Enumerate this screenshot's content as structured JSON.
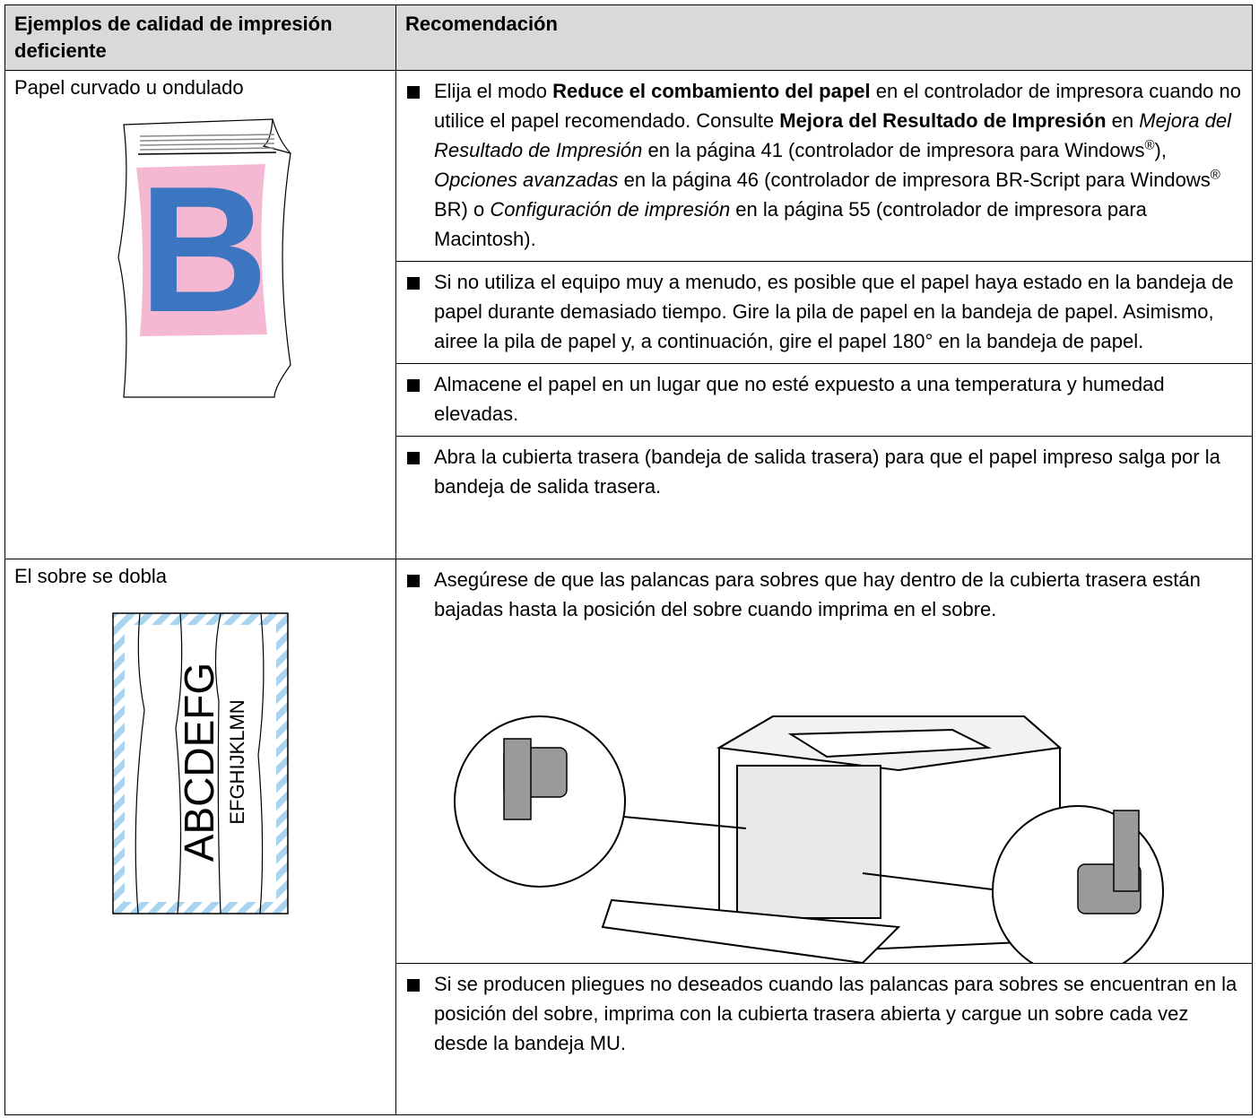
{
  "table": {
    "headers": [
      "Ejemplos de calidad de impresión deficiente",
      "Recomendación"
    ],
    "rows": [
      {
        "example": "Papel curvado u ondulado",
        "image_text": "B",
        "recommendations": [
          [
            {
              "text": "Elija el modo ",
              "style": "normal"
            },
            {
              "text": "Reduce el combamiento del papel",
              "style": "bold"
            },
            {
              "text": " en el controlador de impresora cuando no utilice el papel recomendado. Consulte ",
              "style": "normal"
            },
            {
              "text": "Mejora del Resultado de Impresión",
              "style": "bold"
            },
            {
              "text": " en ",
              "style": "normal"
            },
            {
              "text": "Mejora del Resultado de Impresión",
              "style": "italic"
            },
            {
              "text": " en la página 41 (controlador de impresora para Windows",
              "style": "normal"
            },
            {
              "text": "®",
              "style": "sup"
            },
            {
              "text": "), ",
              "style": "normal"
            },
            {
              "text": "Opciones avanzadas",
              "style": "italic"
            },
            {
              "text": " en la página 46 (controlador de impresora BR-Script para Windows",
              "style": "normal"
            },
            {
              "text": "®",
              "style": "sup"
            },
            {
              "text": " BR) o ",
              "style": "normal"
            },
            {
              "text": "Configuración de impresión",
              "style": "italic"
            },
            {
              "text": " en la página 55 (controlador de impresora para Macintosh).",
              "style": "normal"
            }
          ],
          "Si no utiliza el equipo muy a menudo, es posible que el papel haya estado en la bandeja de papel durante demasiado tiempo. Gire la pila de papel en la bandeja de papel. Asimismo, airee la pila de papel y, a continuación, gire el papel 180° en la bandeja de papel.",
          "Almacene el papel en un lugar que no esté expuesto a una temperatura y humedad elevadas.",
          "Abra la cubierta trasera (bandeja de salida trasera) para que el papel impreso salga por la bandeja de salida trasera."
        ]
      },
      {
        "example": "El sobre se dobla",
        "image_text": [
          "ABCDEFG",
          "EFGHIJKLMN"
        ],
        "recommendations": [
          "Asegúrese de que las palancas para sobres que hay dentro de la cubierta trasera están bajadas hasta la posición del sobre cuando imprima en el sobre.",
          "Si se producen pliegues no deseados cuando las palancas para sobres se encuentran en la posición del sobre, imprima con la cubierta trasera abierta y cargue un sobre cada vez desde la bandeja MU."
        ]
      }
    ]
  }
}
